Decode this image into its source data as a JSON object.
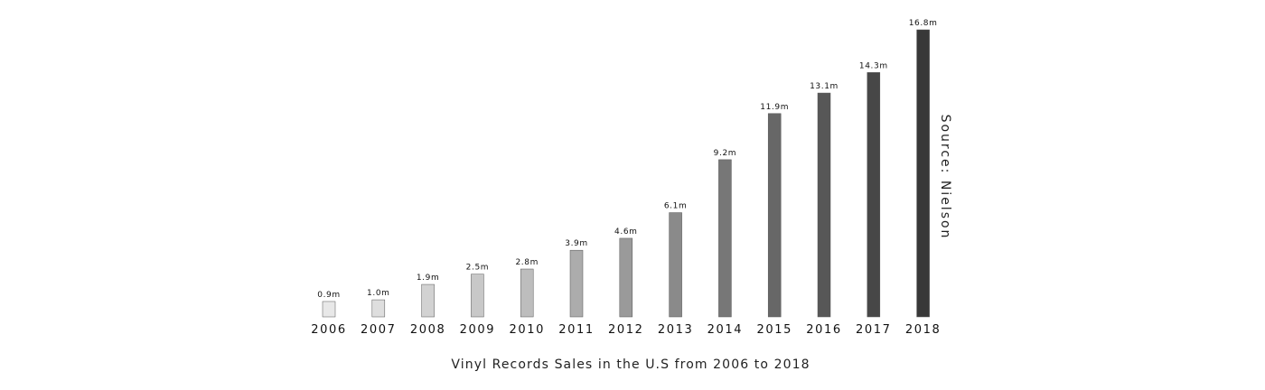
{
  "chart_data": {
    "type": "bar",
    "title": "Vinyl Records Sales in the U.S from 2006 to 2018",
    "source": "Source: Nielson",
    "xlabel": "",
    "ylabel": "",
    "categories": [
      "2006",
      "2007",
      "2008",
      "2009",
      "2010",
      "2011",
      "2012",
      "2013",
      "2014",
      "2015",
      "2016",
      "2017",
      "2018"
    ],
    "values": [
      0.9,
      1.0,
      1.9,
      2.5,
      2.8,
      3.9,
      4.6,
      6.1,
      9.2,
      11.9,
      13.1,
      14.3,
      16.8
    ],
    "value_labels": [
      "0.9m",
      "1.0m",
      "1.9m",
      "2.5m",
      "2.8m",
      "3.9m",
      "4.6m",
      "6.1m",
      "9.2m",
      "11.9m",
      "13.1m",
      "14.3m",
      "16.8m"
    ],
    "colors": [
      "#e8e8e8",
      "#dedede",
      "#d2d2d2",
      "#c8c8c8",
      "#bdbdbd",
      "#acacac",
      "#9a9a9a",
      "#8a8a8a",
      "#777777",
      "#676767",
      "#575757",
      "#474747",
      "#383838"
    ],
    "ylim": [
      0,
      16.8
    ],
    "grid": false,
    "legend": "none"
  }
}
